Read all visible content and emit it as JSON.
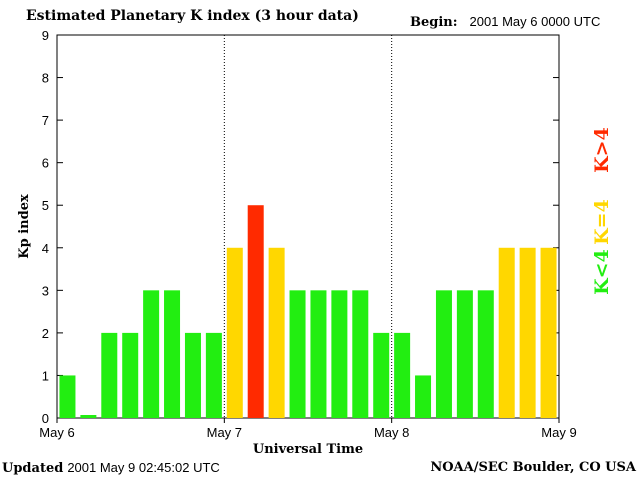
{
  "header": {
    "title": "Estimated Planetary K index (3 hour data)",
    "begin_label": "Begin:",
    "begin_value": "2001 May 6 0000 UTC"
  },
  "footer": {
    "updated_label": "Updated",
    "updated_value": "2001 May  9 02:45:02 UTC",
    "source": "NOAA/SEC Boulder, CO USA"
  },
  "legend": [
    {
      "text": "K<4",
      "color": "#22ee11"
    },
    {
      "text": "K=4",
      "color": "#ffd700"
    },
    {
      "text": "K>4",
      "color": "#ff2a00"
    }
  ],
  "colors": {
    "below": "#22ee11",
    "equal": "#ffd700",
    "above": "#ff2a00"
  },
  "chart_data": {
    "type": "bar",
    "xlabel": "Universal Time",
    "ylabel": "Kp index",
    "ylim": [
      0,
      9
    ],
    "y_ticks": [
      0,
      1,
      2,
      3,
      4,
      5,
      6,
      7,
      8,
      9
    ],
    "x_day_labels": [
      "May 6",
      "May 7",
      "May 8",
      "May 9"
    ],
    "day_separators": "dotted",
    "grid": false,
    "values": [
      1,
      0.05,
      2,
      2,
      3,
      3,
      2,
      2,
      4,
      5,
      4,
      3,
      3,
      3,
      3,
      2,
      2,
      1,
      3,
      3,
      3,
      4,
      4,
      4
    ]
  }
}
